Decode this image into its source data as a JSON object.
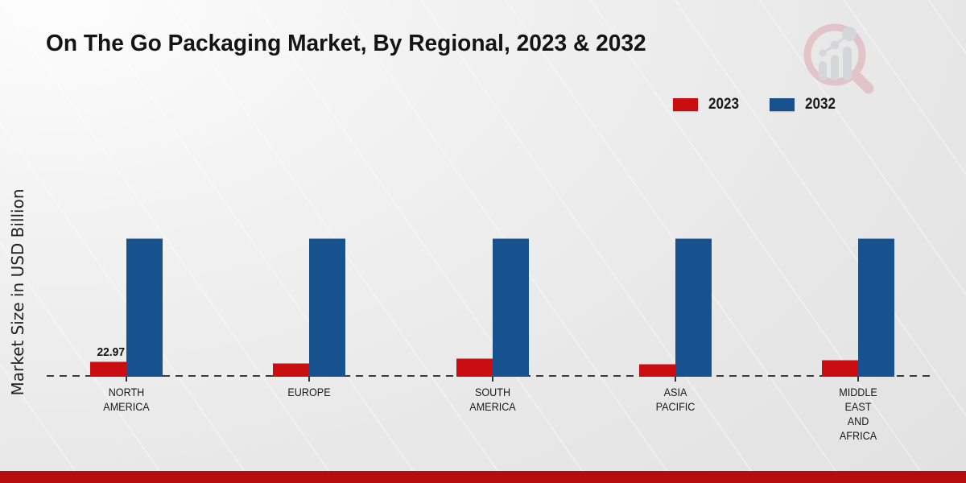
{
  "page": {
    "title": "On The Go Packaging Market, By Regional, 2023 & 2032"
  },
  "axes": {
    "y_label": "Market Size in USD Billion"
  },
  "legend": {
    "items": [
      {
        "label": "2023",
        "color": "#c90d10"
      },
      {
        "label": "2032",
        "color": "#17518e"
      }
    ]
  },
  "icons": {
    "watermark": "magnifier-trend-chart-logo"
  },
  "colors": {
    "accent_red": "#c90d10",
    "accent_blue": "#17518e",
    "footer_bar": "#b50d0d",
    "baseline": "#3c3c3c",
    "background_light": "#fdfdfd",
    "background_dark": "#e2e2e2"
  },
  "chart_data": {
    "type": "bar",
    "title": "On The Go Packaging Market, By Regional, 2023 & 2032",
    "xlabel": "",
    "ylabel": "Market Size in USD Billion",
    "categories": [
      "NORTH AMERICA",
      "EUROPE",
      "SOUTH AMERICA",
      "ASIA PACIFIC",
      "MIDDLE EAST AND AFRICA"
    ],
    "category_lines": [
      [
        "NORTH",
        "AMERICA"
      ],
      [
        "EUROPE"
      ],
      [
        "SOUTH",
        "AMERICA"
      ],
      [
        "ASIA",
        "PACIFIC"
      ],
      [
        "MIDDLE",
        "EAST",
        "AND",
        "AFRICA"
      ]
    ],
    "series": [
      {
        "name": "2023",
        "color": "#c90d10",
        "values": [
          22.97,
          20.6,
          27.8,
          19.8,
          25.1
        ]
      },
      {
        "name": "2032",
        "color": "#17518e",
        "values": [
          208,
          208,
          208,
          208,
          208
        ]
      }
    ],
    "data_labels": [
      {
        "series": "2023",
        "category": "NORTH AMERICA",
        "text": "22.97"
      }
    ],
    "ylim": [
      0,
      208
    ],
    "grid": false,
    "legend_position": "top-right",
    "baseline_style": "dashed",
    "y_ticks_visible": false
  }
}
